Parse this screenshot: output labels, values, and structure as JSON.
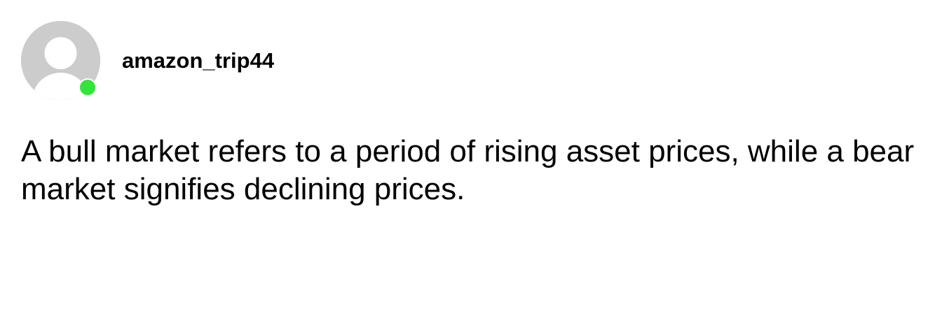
{
  "post": {
    "username": "amazon_trip44",
    "online_status_color": "#33e43a",
    "avatar_icon": "default-user-silhouette",
    "comment": "A bull market refers to a period of rising asset prices, while a bear market signifies declining prices."
  }
}
